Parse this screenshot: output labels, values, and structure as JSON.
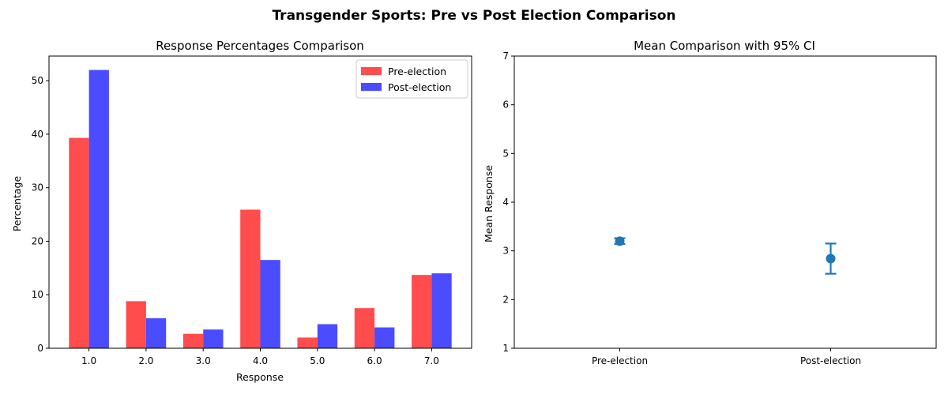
{
  "figure": {
    "title": "Transgender Sports: Pre vs Post Election Comparison"
  },
  "chart_data": [
    {
      "type": "bar",
      "title": "Response Percentages Comparison",
      "xlabel": "Response",
      "ylabel": "Percentage",
      "categories": [
        "1.0",
        "2.0",
        "3.0",
        "4.0",
        "5.0",
        "6.0",
        "7.0"
      ],
      "series": [
        {
          "name": "Pre-election",
          "color": "#ff4c4c",
          "values": [
            39.3,
            8.8,
            2.7,
            25.9,
            2.0,
            7.5,
            13.7
          ]
        },
        {
          "name": "Post-election",
          "color": "#4c4cff",
          "values": [
            52.0,
            5.6,
            3.5,
            16.5,
            4.5,
            3.9,
            14.0
          ]
        }
      ],
      "ylim": [
        0,
        54.6
      ],
      "yticks": [
        0,
        10,
        20,
        30,
        40,
        50
      ],
      "legend": "top-right",
      "grid": false
    },
    {
      "type": "scatter",
      "title": "Mean Comparison with 95% CI",
      "xlabel": "",
      "ylabel": "Mean Response",
      "categories": [
        "Pre-election",
        "Post-election"
      ],
      "means": [
        3.2,
        2.84
      ],
      "ci_lower": [
        3.14,
        2.53
      ],
      "ci_upper": [
        3.26,
        3.15
      ],
      "color": "#1f77b4",
      "ylim": [
        1,
        7
      ],
      "yticks": [
        1,
        2,
        3,
        4,
        5,
        6,
        7
      ],
      "grid": false
    }
  ]
}
